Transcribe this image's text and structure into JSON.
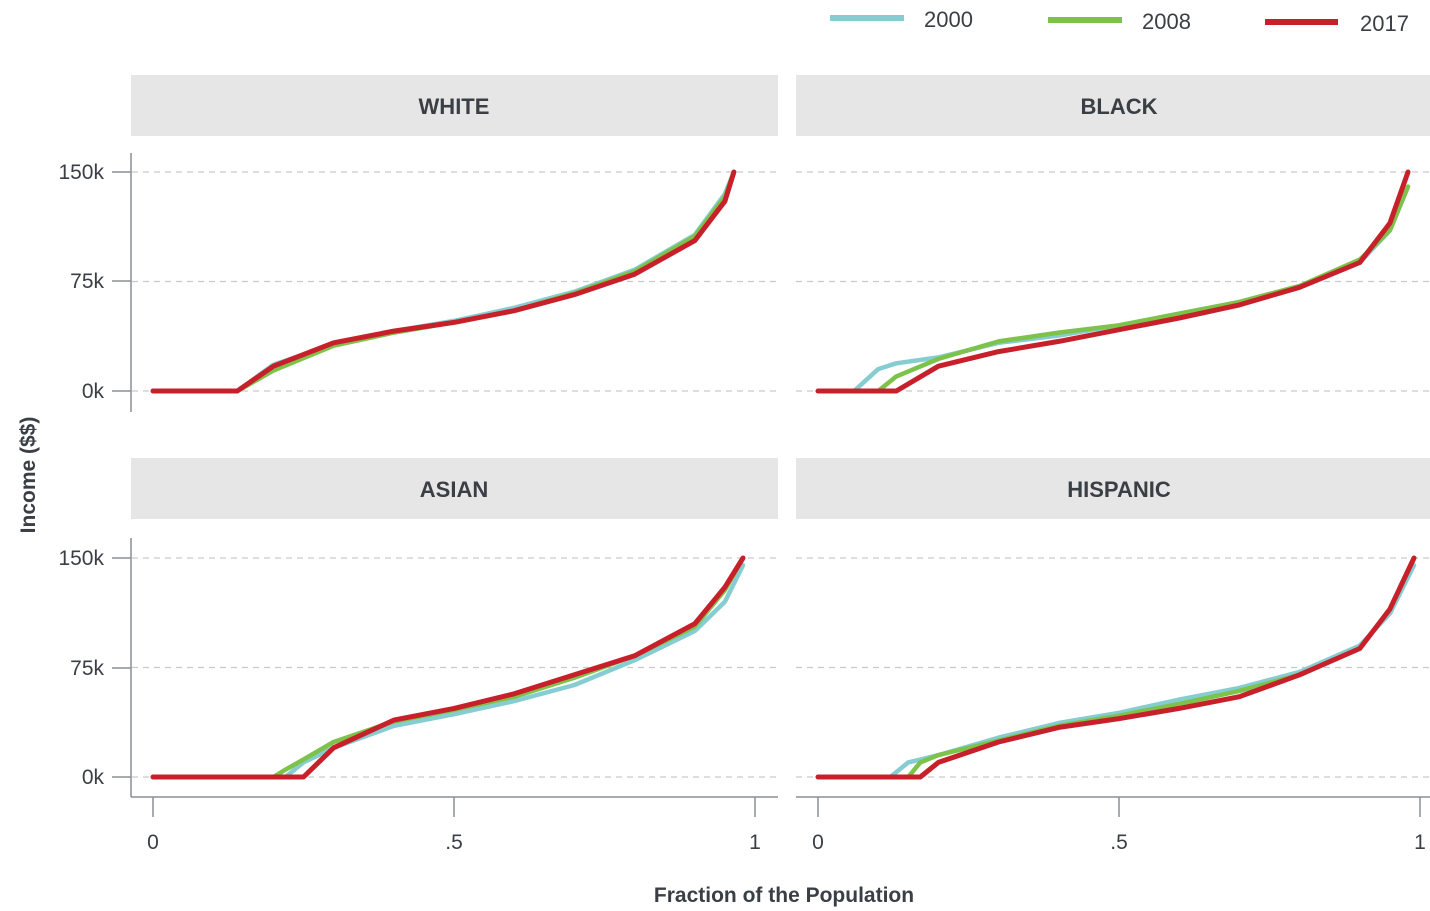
{
  "chart_data": {
    "type": "line",
    "xlabel": "Fraction of the Population",
    "ylabel": "Income ($$)",
    "xlim": [
      0,
      1
    ],
    "ylim": [
      0,
      150000
    ],
    "x_ticks": [
      {
        "value": 0,
        "label": "0"
      },
      {
        "value": 0.5,
        "label": ".5"
      },
      {
        "value": 1,
        "label": "1"
      }
    ],
    "y_ticks": [
      {
        "value": 0,
        "label": "0k"
      },
      {
        "value": 75000,
        "label": "75k"
      },
      {
        "value": 150000,
        "label": "150k"
      }
    ],
    "grid": "horizontal dashed",
    "legend_position": "top-right",
    "legend": [
      {
        "name": "2000",
        "color": "#85cdd1"
      },
      {
        "name": "2008",
        "color": "#7dc24a"
      },
      {
        "name": "2017",
        "color": "#c8202a"
      }
    ],
    "panels": [
      {
        "title": "WHITE",
        "x": [
          0,
          0.14,
          0.2,
          0.3,
          0.4,
          0.5,
          0.6,
          0.7,
          0.8,
          0.9,
          0.95,
          0.965
        ],
        "series": [
          {
            "name": "2000",
            "values": [
              0,
              0,
              18000,
              32000,
              41000,
              48000,
              57000,
              68000,
              83000,
              107000,
              135000,
              150000
            ]
          },
          {
            "name": "2008",
            "values": [
              0,
              0,
              14000,
              31000,
              40000,
              47000,
              55000,
              67000,
              82000,
              106000,
              133000,
              150000
            ]
          },
          {
            "name": "2017",
            "values": [
              0,
              0,
              17000,
              33000,
              41000,
              47000,
              55000,
              66000,
              80000,
              103000,
              130000,
              150000
            ]
          }
        ]
      },
      {
        "title": "BLACK",
        "x": [
          0,
          0.06,
          0.1,
          0.13,
          0.2,
          0.3,
          0.4,
          0.5,
          0.6,
          0.7,
          0.8,
          0.9,
          0.95,
          0.98
        ],
        "series": [
          {
            "name": "2000",
            "values": [
              0,
              0,
              15000,
              19000,
              23000,
              33000,
              38000,
              45000,
              52000,
              61000,
              71000,
              88000,
              110000,
              140000
            ]
          },
          {
            "name": "2008",
            "values": [
              0,
              0,
              0,
              10000,
              22000,
              34000,
              40000,
              45000,
              53000,
              61000,
              72000,
              90000,
              110000,
              140000
            ]
          },
          {
            "name": "2017",
            "values": [
              0,
              0,
              0,
              0,
              17000,
              27000,
              34000,
              42000,
              50000,
              59000,
              71000,
              88000,
              115000,
              150000
            ]
          }
        ]
      },
      {
        "title": "ASIAN",
        "x": [
          0,
          0.2,
          0.22,
          0.25,
          0.3,
          0.4,
          0.5,
          0.6,
          0.7,
          0.8,
          0.9,
          0.95,
          0.98
        ],
        "series": [
          {
            "name": "2000",
            "values": [
              0,
              0,
              0,
              10000,
              20000,
              35000,
              43000,
              52000,
              63000,
              80000,
              100000,
              120000,
              145000
            ]
          },
          {
            "name": "2008",
            "values": [
              0,
              0,
              5000,
              12000,
              24000,
              38000,
              46000,
              55000,
              68000,
              83000,
              103000,
              128000,
              150000
            ]
          },
          {
            "name": "2017",
            "values": [
              0,
              0,
              0,
              0,
              20000,
              39000,
              47000,
              57000,
              70000,
              83000,
              105000,
              130000,
              150000
            ]
          }
        ]
      },
      {
        "title": "HISPANIC",
        "x": [
          0,
          0.12,
          0.15,
          0.17,
          0.2,
          0.3,
          0.4,
          0.5,
          0.6,
          0.7,
          0.8,
          0.9,
          0.95,
          0.99
        ],
        "series": [
          {
            "name": "2000",
            "values": [
              0,
              0,
              10000,
              12000,
              15000,
              27000,
              37000,
              44000,
              53000,
              61000,
              72000,
              90000,
              112000,
              145000
            ]
          },
          {
            "name": "2008",
            "values": [
              0,
              0,
              0,
              10000,
              15000,
              25000,
              35000,
              42000,
              50000,
              59000,
              70000,
              88000,
              115000,
              150000
            ]
          },
          {
            "name": "2017",
            "values": [
              0,
              0,
              0,
              0,
              10000,
              24000,
              34000,
              40000,
              47000,
              55000,
              70000,
              88000,
              115000,
              150000
            ]
          }
        ]
      }
    ]
  }
}
